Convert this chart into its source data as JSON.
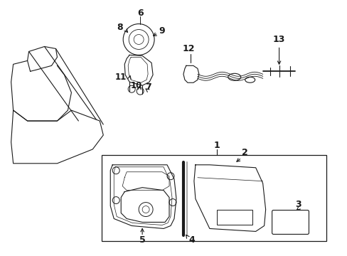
{
  "bg_color": "#ffffff",
  "line_color": "#1a1a1a",
  "figsize": [
    4.89,
    3.6
  ],
  "dpi": 100,
  "seat_color": "#555555",
  "gray_color": "#888888"
}
